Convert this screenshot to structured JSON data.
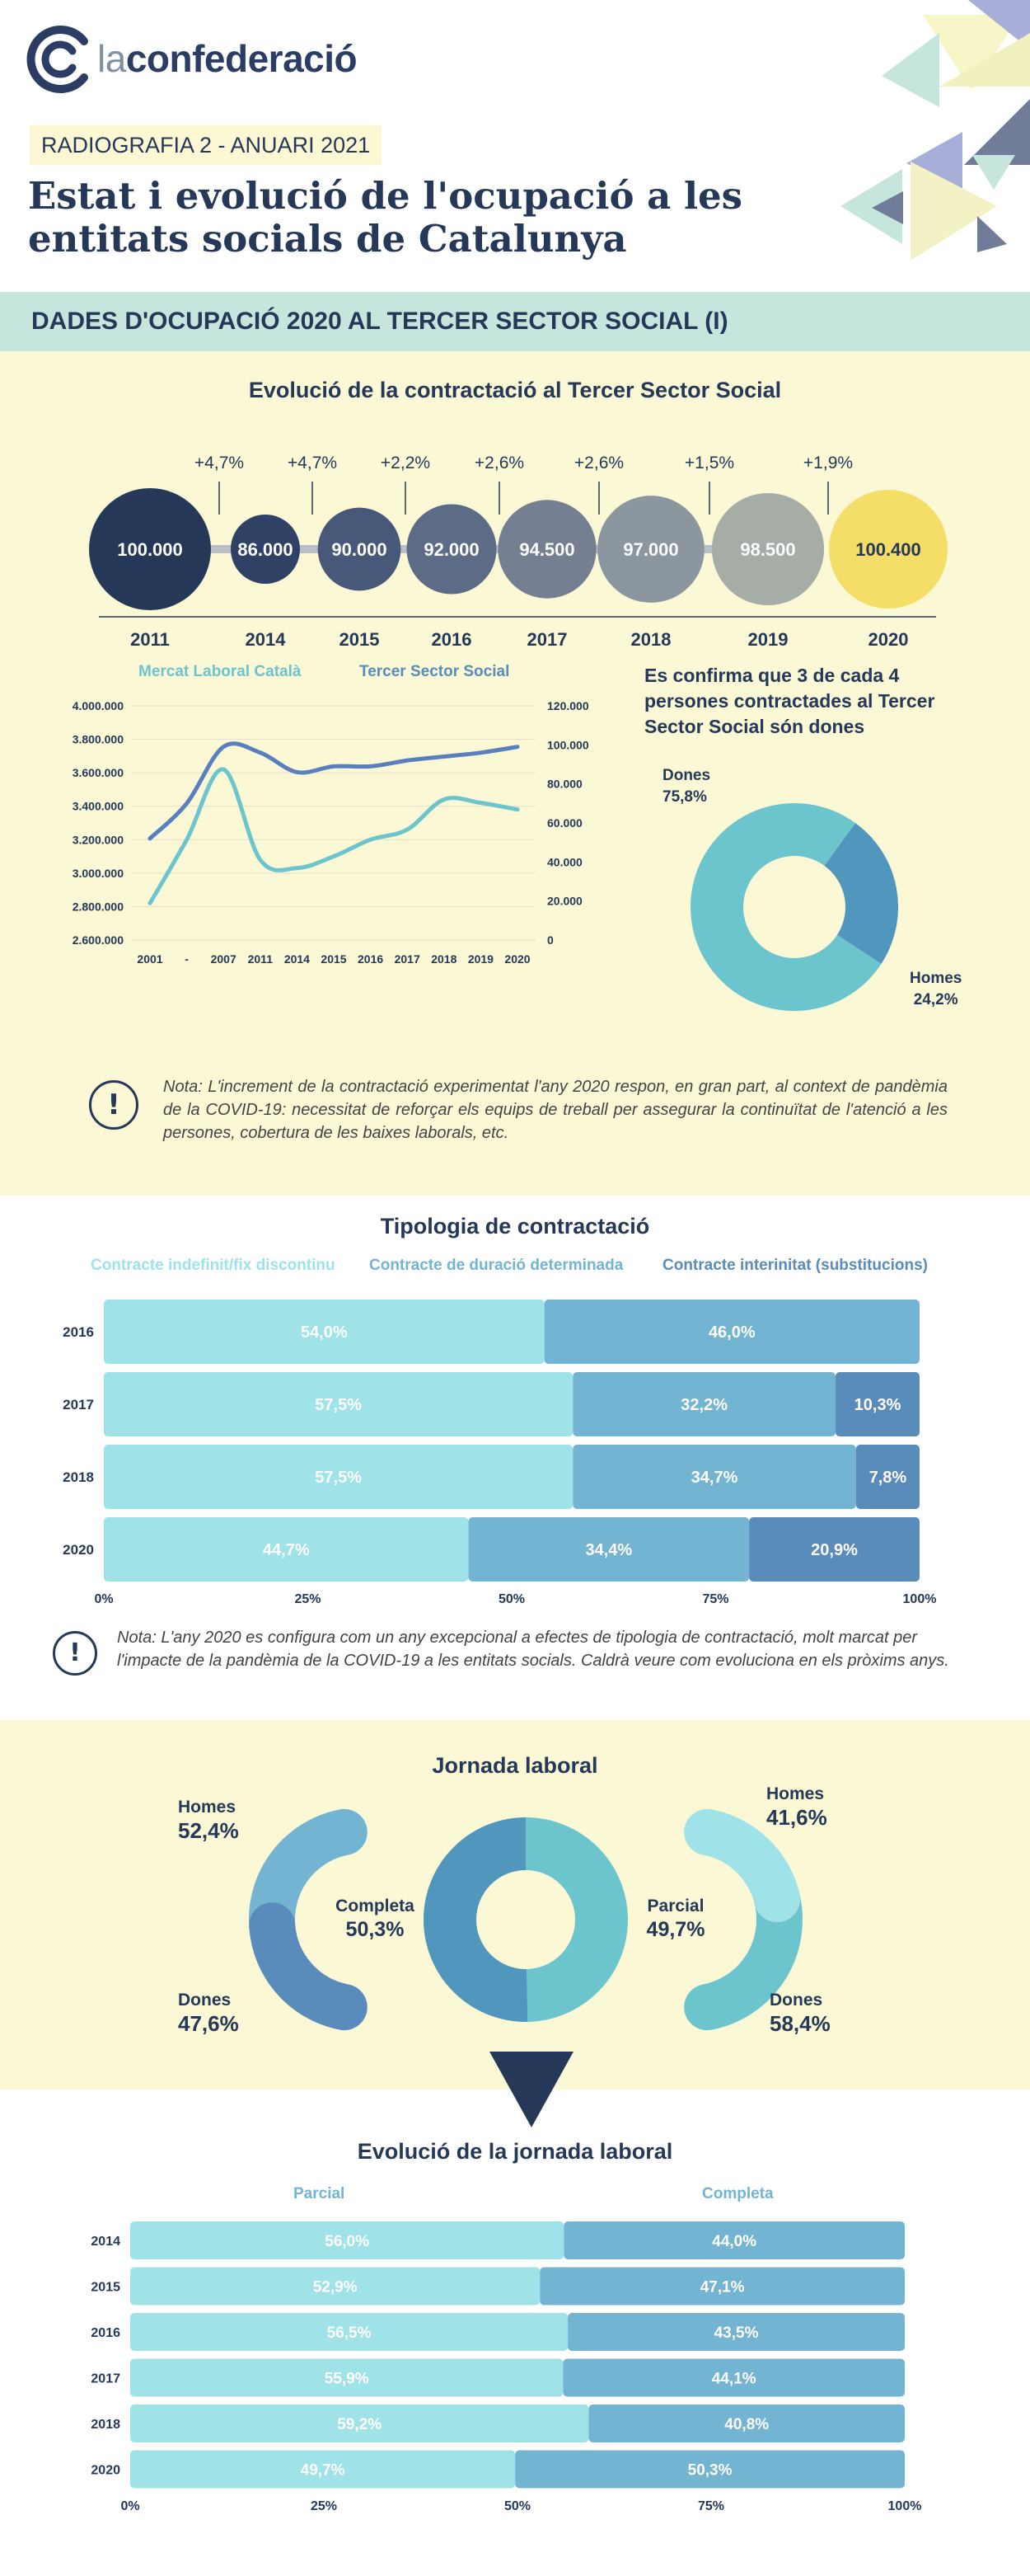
{
  "header": {
    "brand_prefix": "la",
    "brand_name": "confederació",
    "kicker": "RADIOGRAFIA 2 - ANUARI 2021",
    "title": "Estat i evolució de l'ocupació a les entitats socials de Catalunya"
  },
  "band": {
    "title": "DADES D'OCUPACIÓ 2020 AL TERCER SECTOR SOCIAL (I)"
  },
  "colors": {
    "navy": "#253858",
    "light_cyan": "#9fe2e8",
    "mid_blue": "#74b4d3",
    "dark_blue": "#5a8cbb",
    "teal": "#6cc4cc",
    "yellow_bg": "#fbf8d6",
    "band_bg": "#c6e6dd",
    "highlight_yellow": "#f5de68"
  },
  "evolucio": {
    "title": "Evolució de la contractació al Tercer Sector Social",
    "chart_data": {
      "type": "bubble-timeline",
      "years": [
        "2011",
        "2014",
        "2015",
        "2016",
        "2017",
        "2018",
        "2019",
        "2020"
      ],
      "values": [
        100000,
        86000,
        90000,
        92000,
        94500,
        97000,
        98500,
        100400
      ],
      "value_labels": [
        "100.000",
        "86.000",
        "90.000",
        "92.000",
        "94.500",
        "97.000",
        "98.500",
        "100.400"
      ],
      "growth_labels": [
        "+4,7%",
        "+4,7%",
        "+2,2%",
        "+2,6%",
        "+2,6%",
        "+1,5%",
        "+1,9%"
      ],
      "bubble_colors": [
        "#253858",
        "#2f4266",
        "#475879",
        "#5d6c86",
        "#747f92",
        "#8c969f",
        "#a6aca6",
        "#f5de68"
      ]
    }
  },
  "line_chart": {
    "chart_data": {
      "type": "line",
      "categories": [
        "2001",
        "-",
        "2007",
        "2011",
        "2014",
        "2015",
        "2016",
        "2017",
        "2018",
        "2019",
        "2020"
      ],
      "series": [
        {
          "name": "Mercat Laboral Català",
          "axis": "left",
          "color": "#6cc4cc",
          "values": [
            2820000,
            3200000,
            3620000,
            3080000,
            3030000,
            3100000,
            3200000,
            3260000,
            3440000,
            3420000,
            3380000
          ]
        },
        {
          "name": "Tercer Sector Social",
          "axis": "right",
          "color": "#5a7fbf",
          "values": [
            52000,
            70000,
            99000,
            96000,
            86000,
            89000,
            89000,
            92000,
            94000,
            96000,
            99000
          ]
        }
      ],
      "y_left": {
        "min": 2600000,
        "max": 4000000,
        "ticks": [
          "2.600.000",
          "2.800.000",
          "3.000.000",
          "3.200.000",
          "3.400.000",
          "3.600.000",
          "3.800.000",
          "4.000.000"
        ]
      },
      "y_right": {
        "min": 0,
        "max": 120000,
        "ticks": [
          "0",
          "20.000",
          "40.000",
          "60.000",
          "80.000",
          "100.000",
          "120.000"
        ]
      },
      "legend_position": "top"
    }
  },
  "gender": {
    "title": "Es confirma que 3 de cada 4 persones contractades al Tercer Sector Social són dones",
    "chart_data": {
      "type": "pie",
      "slices": [
        {
          "label": "Dones",
          "value": 75.8,
          "display": "75,8%",
          "color": "#6cc4cc"
        },
        {
          "label": "Homes",
          "value": 24.2,
          "display": "24,2%",
          "color": "#5096bd"
        }
      ]
    }
  },
  "note1": "Nota: L'increment de la contractació experimentat l'any 2020 respon, en gran part, al context de pandèmia de la COVID-19: necessitat de reforçar els equips de treball per assegurar la continuïtat de l'atenció a les persones, cobertura de les baixes laborals, etc.",
  "tipologia": {
    "title": "Tipologia de contractació",
    "chart_data": {
      "type": "bar",
      "orientation": "horizontal-stacked-100",
      "categories": [
        "2016",
        "2017",
        "2018",
        "2020"
      ],
      "series": [
        {
          "name": "Contracte indefinit/fix discontinu",
          "color": "#9fe2e8",
          "values": [
            54.0,
            57.5,
            57.5,
            44.7
          ],
          "labels": [
            "54,0%",
            "57,5%",
            "57,5%",
            "44,7%"
          ]
        },
        {
          "name": "Contracte de duració determinada",
          "color": "#74b4d3",
          "values": [
            46.0,
            32.2,
            34.7,
            34.4
          ],
          "labels": [
            "46,0%",
            "32,2%",
            "34,7%",
            "34,4%"
          ]
        },
        {
          "name": "Contracte interinitat (substitucions)",
          "color": "#5a8cbb",
          "values": [
            0,
            10.3,
            7.8,
            20.9
          ],
          "labels": [
            "",
            "10,3%",
            "7,8%",
            "20,9%"
          ]
        }
      ],
      "x_ticks": [
        "0%",
        "25%",
        "50%",
        "75%",
        "100%"
      ]
    }
  },
  "note2": "Nota: L'any 2020 es configura com un any excepcional a efectes de tipologia de contractació, molt marcat per l'impacte de la pandèmia de la COVID-19 a les entitats socials. Caldrà veure com evoluciona en els pròxims anys.",
  "jornada": {
    "title": "Jornada laboral",
    "chart_data": {
      "type": "pie",
      "center": [
        {
          "label": "Completa",
          "value": 50.3,
          "display": "50,3%",
          "color": "#5096bd"
        },
        {
          "label": "Parcial",
          "value": 49.7,
          "display": "49,7%",
          "color": "#6cc4cc"
        }
      ],
      "completa_split": [
        {
          "label": "Homes",
          "value": 52.4,
          "display": "52,4%",
          "color": "#74b4d3"
        },
        {
          "label": "Dones",
          "value": 47.6,
          "display": "47,6%",
          "color": "#5a8cbb"
        }
      ],
      "parcial_split": [
        {
          "label": "Homes",
          "value": 41.6,
          "display": "41,6%",
          "color": "#9fe2e8"
        },
        {
          "label": "Dones",
          "value": 58.4,
          "display": "58,4%",
          "color": "#6cc4cc"
        }
      ]
    }
  },
  "evol_jornada": {
    "title": "Evolució de la jornada laboral",
    "chart_data": {
      "type": "bar",
      "orientation": "horizontal-stacked-100",
      "categories": [
        "2014",
        "2015",
        "2016",
        "2017",
        "2018",
        "2020"
      ],
      "series": [
        {
          "name": "Parcial",
          "color": "#9fe2e8",
          "values": [
            56.0,
            52.9,
            56.5,
            55.9,
            59.2,
            49.7
          ],
          "labels": [
            "56,0%",
            "52,9%",
            "56,5%",
            "55,9%",
            "59,2%",
            "49,7%"
          ]
        },
        {
          "name": "Completa",
          "color": "#74b4d3",
          "values": [
            44.0,
            47.1,
            43.5,
            44.1,
            40.8,
            50.3
          ],
          "labels": [
            "44,0%",
            "47,1%",
            "43,5%",
            "44,1%",
            "40,8%",
            "50,3%"
          ]
        }
      ],
      "x_ticks": [
        "0%",
        "25%",
        "50%",
        "75%",
        "100%"
      ]
    }
  }
}
